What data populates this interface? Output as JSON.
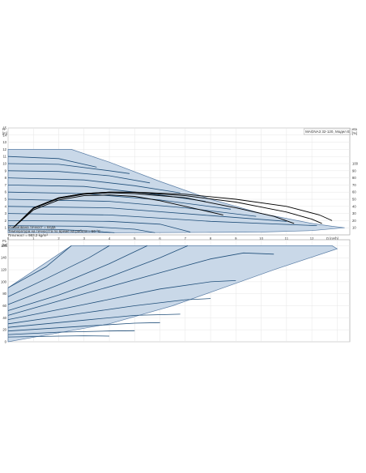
{
  "colors": {
    "fill": "#c9d8e8",
    "edge": "#5b7ea6",
    "curve": "#1f4e79",
    "efficiency": "#000000",
    "grid": "#e6e6e6",
    "frame": "#999999",
    "text": "#333333"
  },
  "chart_data": [
    {
      "type": "line",
      "title": "MAGNA3 32-120, Модел Е",
      "ylabel_left": "H\n[m]",
      "ylabel_right": "eta\n[%]",
      "xlabel": "Q [m³/h]",
      "xlim": [
        0,
        13.5
      ],
      "ylim": [
        0,
        15
      ],
      "y2lim": [
        0,
        150
      ],
      "grid": true,
      "x_ticks": [
        "0",
        "1",
        "2",
        "3",
        "4",
        "5",
        "6",
        "7",
        "8",
        "9",
        "10",
        "11",
        "12"
      ],
      "y_ticks": [
        "1",
        "2",
        "3",
        "4",
        "5",
        "6",
        "7",
        "8",
        "9",
        "10",
        "11",
        "12",
        "13",
        "14",
        "15"
      ],
      "y2_ticks": [
        "10",
        "20",
        "30",
        "40",
        "50",
        "60",
        "70",
        "80",
        "90",
        "100"
      ],
      "operating_area": {
        "name": "Max",
        "points": [
          [
            0,
            12
          ],
          [
            2.5,
            12
          ],
          [
            4,
            10.2
          ],
          [
            6,
            7.5
          ],
          [
            8,
            5
          ],
          [
            10,
            3
          ],
          [
            12,
            1.6
          ],
          [
            12.8,
            1.2
          ],
          [
            13.3,
            1
          ],
          [
            12,
            0.6
          ],
          [
            10,
            0.4
          ],
          [
            8,
            0.35
          ],
          [
            4,
            0.3
          ],
          [
            0,
            0.3
          ]
        ]
      },
      "head_curves": [
        {
          "values": [
            [
              0,
              11
            ],
            [
              2,
              10.7
            ],
            [
              3.5,
              9.5
            ]
          ]
        },
        {
          "values": [
            [
              0,
              10
            ],
            [
              2,
              9.9
            ],
            [
              4,
              9.0
            ],
            [
              4.8,
              8.6
            ]
          ]
        },
        {
          "values": [
            [
              0,
              9
            ],
            [
              2,
              8.9
            ],
            [
              4,
              8.3
            ],
            [
              5.6,
              7.3
            ]
          ]
        },
        {
          "values": [
            [
              0,
              8
            ],
            [
              3,
              7.7
            ],
            [
              5,
              6.9
            ],
            [
              6.8,
              5.9
            ]
          ]
        },
        {
          "values": [
            [
              0,
              7
            ],
            [
              3,
              6.8
            ],
            [
              6,
              5.6
            ],
            [
              7.8,
              4.7
            ]
          ]
        },
        {
          "values": [
            [
              0,
              6
            ],
            [
              3,
              5.8
            ],
            [
              6,
              4.9
            ],
            [
              8.8,
              3.6
            ]
          ]
        },
        {
          "values": [
            [
              0,
              5
            ],
            [
              4,
              4.7
            ],
            [
              7,
              3.8
            ],
            [
              9.8,
              2.6
            ]
          ]
        },
        {
          "values": [
            [
              0,
              4
            ],
            [
              4,
              3.8
            ],
            [
              8,
              2.7
            ],
            [
              11,
              1.9
            ]
          ]
        },
        {
          "values": [
            [
              0,
              3
            ],
            [
              4,
              2.8
            ],
            [
              8,
              1.9
            ],
            [
              12.2,
              1.3
            ]
          ]
        },
        {
          "values": [
            [
              0,
              2
            ],
            [
              4,
              1.9
            ],
            [
              6,
              1.5
            ],
            [
              7.2,
              0.4
            ]
          ]
        },
        {
          "values": [
            [
              0,
              1.3
            ],
            [
              3,
              1.2
            ],
            [
              5,
              0.8
            ],
            [
              5.8,
              0.3
            ]
          ]
        },
        {
          "values": [
            [
              0,
              0.8
            ],
            [
              2,
              0.75
            ],
            [
              3.5,
              0.5
            ],
            [
              4.2,
              0.3
            ]
          ]
        }
      ],
      "efficiency_curves": [
        {
          "values": [
            [
              0.2,
              1
            ],
            [
              1,
              3.8
            ],
            [
              2,
              5.2
            ],
            [
              3,
              5.8
            ],
            [
              4,
              6.0
            ],
            [
              5,
              6.0
            ],
            [
              7,
              5.7
            ],
            [
              9,
              5.0
            ],
            [
              11,
              4.0
            ],
            [
              12.3,
              2.8
            ],
            [
              12.8,
              2.0
            ]
          ]
        },
        {
          "values": [
            [
              0.2,
              1
            ],
            [
              1,
              3.8
            ],
            [
              2,
              5.2
            ],
            [
              3,
              5.8
            ],
            [
              4,
              6.0
            ],
            [
              5,
              5.95
            ],
            [
              7,
              5.5
            ],
            [
              9,
              4.6
            ],
            [
              11,
              3.2
            ],
            [
              12,
              2.2
            ],
            [
              12.4,
              1.6
            ]
          ]
        },
        {
          "values": [
            [
              0.2,
              1
            ],
            [
              1,
              3.7
            ],
            [
              2,
              5.1
            ],
            [
              3,
              5.7
            ],
            [
              4,
              5.9
            ],
            [
              5,
              5.8
            ],
            [
              7,
              5.2
            ],
            [
              9,
              3.8
            ],
            [
              10.5,
              2.6
            ],
            [
              11.3,
              1.6
            ]
          ]
        },
        {
          "values": [
            [
              0.2,
              1
            ],
            [
              1,
              3.5
            ],
            [
              2,
              4.9
            ],
            [
              3,
              5.5
            ],
            [
              4,
              5.6
            ],
            [
              5,
              5.4
            ],
            [
              6,
              4.8
            ],
            [
              7,
              4.0
            ],
            [
              8.5,
              2.8
            ]
          ]
        }
      ]
    },
    {
      "type": "line",
      "ylabel": "P1\n[W]",
      "xlim": [
        0,
        13.5
      ],
      "ylim": [
        0,
        170
      ],
      "grid": true,
      "y_ticks": [
        "0",
        "20",
        "40",
        "60",
        "80",
        "100",
        "120",
        "140",
        "160"
      ],
      "power_area": {
        "points": [
          [
            0,
            0
          ],
          [
            0,
            90
          ],
          [
            2.5,
            160
          ],
          [
            12.8,
            160
          ],
          [
            13.0,
            155
          ],
          [
            10.5,
            120
          ],
          [
            8.5,
            90
          ],
          [
            6.5,
            60
          ],
          [
            4,
            30
          ],
          [
            0,
            0
          ]
        ]
      },
      "power_curves": [
        {
          "values": [
            [
              0,
              90
            ],
            [
              1.5,
              125
            ],
            [
              2.5,
              160
            ]
          ]
        },
        {
          "values": [
            [
              0,
              75
            ],
            [
              1.5,
              105
            ],
            [
              3.2,
              140
            ],
            [
              4,
              160
            ]
          ]
        },
        {
          "values": [
            [
              0,
              62
            ],
            [
              2,
              95
            ],
            [
              4,
              130
            ],
            [
              5.5,
              160
            ]
          ]
        },
        {
          "values": [
            [
              0,
              52
            ],
            [
              2,
              78
            ],
            [
              4,
              108
            ],
            [
              6,
              140
            ],
            [
              7.1,
              160
            ]
          ]
        },
        {
          "values": [
            [
              0,
              44
            ],
            [
              3,
              80
            ],
            [
              6,
              115
            ],
            [
              8,
              138
            ],
            [
              9.3,
              148
            ],
            [
              10.5,
              146
            ]
          ]
        },
        {
          "values": [
            [
              0,
              37
            ],
            [
              3,
              62
            ],
            [
              6,
              88
            ],
            [
              8,
              100
            ],
            [
              9,
              102
            ]
          ]
        },
        {
          "values": [
            [
              0,
              30
            ],
            [
              3,
              48
            ],
            [
              5,
              60
            ],
            [
              7,
              70
            ],
            [
              8,
              72
            ]
          ]
        },
        {
          "values": [
            [
              0,
              24
            ],
            [
              3,
              36
            ],
            [
              5,
              44
            ],
            [
              6.8,
              46
            ]
          ]
        },
        {
          "values": [
            [
              0,
              18
            ],
            [
              3,
              26
            ],
            [
              5,
              31
            ],
            [
              6,
              32
            ]
          ]
        },
        {
          "values": [
            [
              0,
              12
            ],
            [
              2,
              16
            ],
            [
              4,
              18
            ],
            [
              5,
              18.5
            ]
          ]
        },
        {
          "values": [
            [
              0,
              8
            ],
            [
              2,
              9.5
            ],
            [
              3,
              10
            ],
            [
              4,
              9.5
            ]
          ]
        }
      ]
    }
  ],
  "notes": {
    "line1": "Изпомпвана течност = Вода",
    "line2": "Температура на течността по време на работа = 60 °C",
    "line3": "Плътност = 983.2 kg/m³"
  }
}
